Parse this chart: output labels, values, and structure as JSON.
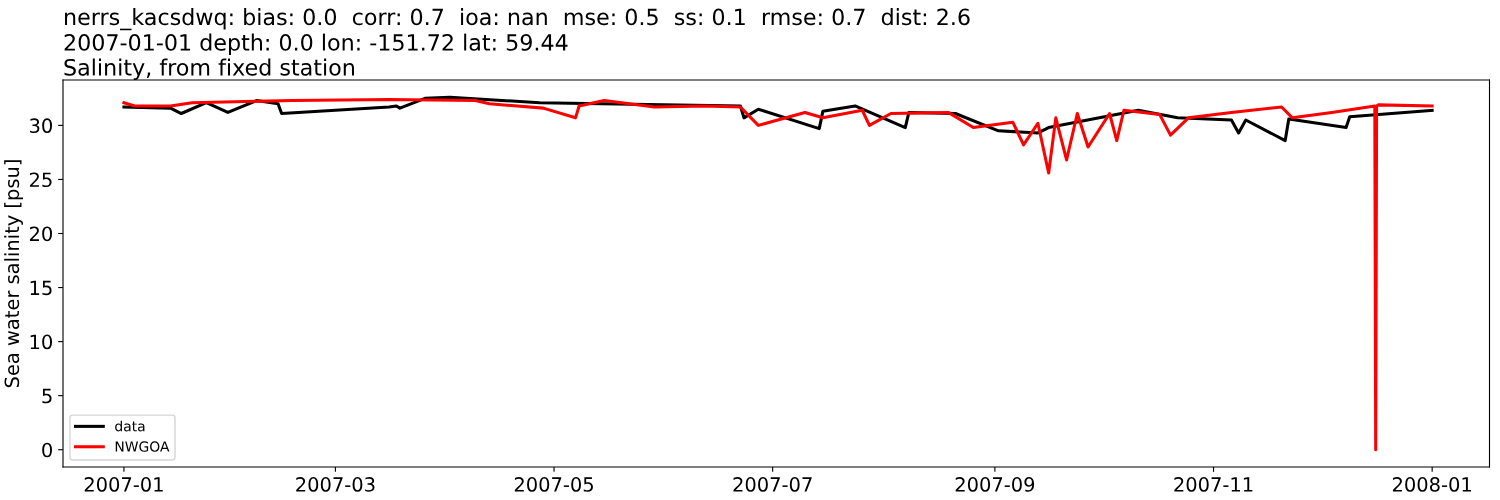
{
  "chart_data": {
    "type": "line",
    "title": "nerrs_kacsdwq: bias: 0.0  corr: 0.7  ioa: nan  mse: 0.5  ss: 0.1  rmse: 0.7  dist: 2.6\n2007-01-01 depth: 0.0 lon: -151.72 lat: 59.44\nSalinity, from fixed station",
    "ylabel": "Sea water salinity [psu]",
    "series": [
      {
        "name": "data",
        "color": "#000000",
        "x": [
          "2007-01-01",
          "2007-01-14",
          "2007-01-17",
          "2007-01-24",
          "2007-01-30",
          "2007-02-07",
          "2007-02-13",
          "2007-02-14",
          "2007-03-16",
          "2007-03-18",
          "2007-03-19",
          "2007-03-26",
          "2007-04-02",
          "2007-04-27",
          "2007-06-22",
          "2007-06-23",
          "2007-06-27",
          "2007-07-14",
          "2007-07-15",
          "2007-07-24",
          "2007-08-07",
          "2007-08-08",
          "2007-08-21",
          "2007-09-02",
          "2007-09-13",
          "2007-09-16",
          "2007-10-11",
          "2007-10-22",
          "2007-11-06",
          "2007-11-08",
          "2007-11-10",
          "2007-11-21",
          "2007-11-22",
          "2007-12-08",
          "2007-12-09",
          "2008-01-01"
        ],
        "values": [
          31.7,
          31.6,
          31.1,
          32.1,
          31.2,
          32.3,
          32.0,
          31.1,
          31.7,
          31.8,
          31.6,
          32.5,
          32.6,
          32.1,
          31.8,
          30.7,
          31.5,
          29.7,
          31.3,
          31.8,
          29.8,
          31.2,
          31.1,
          29.5,
          29.3,
          29.8,
          31.4,
          30.7,
          30.5,
          29.3,
          30.5,
          28.6,
          30.6,
          29.8,
          30.8,
          31.4
        ]
      },
      {
        "name": "NWGOA",
        "color": "#ff0000",
        "x": [
          "2007-01-01",
          "2007-01-04",
          "2007-01-14",
          "2007-01-20",
          "2007-02-17",
          "2007-03-16",
          "2007-04-09",
          "2007-04-13",
          "2007-04-28",
          "2007-05-07",
          "2007-05-08",
          "2007-05-15",
          "2007-05-29",
          "2007-06-12",
          "2007-06-22",
          "2007-06-27",
          "2007-07-10",
          "2007-07-15",
          "2007-07-26",
          "2007-07-28",
          "2007-08-03",
          "2007-08-19",
          "2007-08-26",
          "2007-09-06",
          "2007-09-09",
          "2007-09-13",
          "2007-09-16",
          "2007-09-18",
          "2007-09-21",
          "2007-09-24",
          "2007-09-27",
          "2007-10-03",
          "2007-10-05",
          "2007-10-07",
          "2007-10-17",
          "2007-10-20",
          "2007-10-25",
          "2007-11-06",
          "2007-11-20",
          "2007-11-23",
          "2007-12-04",
          "2007-12-16",
          "2007-12-16T06:00",
          "2007-12-16T12:00",
          "2007-12-17",
          "2008-01-01"
        ],
        "values": [
          32.1,
          31.8,
          31.8,
          32.1,
          32.3,
          32.4,
          32.3,
          32.0,
          31.6,
          30.7,
          31.8,
          32.3,
          31.7,
          31.8,
          31.7,
          30.0,
          31.2,
          30.7,
          31.4,
          30.0,
          31.1,
          31.2,
          29.8,
          30.3,
          28.2,
          30.2,
          25.6,
          30.7,
          26.8,
          31.1,
          28.0,
          31.1,
          28.6,
          31.4,
          31.0,
          29.1,
          30.7,
          31.2,
          31.7,
          30.7,
          31.2,
          31.8,
          0,
          31.8,
          31.9,
          31.8
        ]
      }
    ],
    "xlim": [
      "2006-12-15",
      "2008-01-17"
    ],
    "xticks": [
      {
        "value": "2007-01-01",
        "label": "2007-01"
      },
      {
        "value": "2007-03-01",
        "label": "2007-03"
      },
      {
        "value": "2007-05-01",
        "label": "2007-05"
      },
      {
        "value": "2007-07-01",
        "label": "2007-07"
      },
      {
        "value": "2007-09-01",
        "label": "2007-09"
      },
      {
        "value": "2007-11-01",
        "label": "2007-11"
      },
      {
        "value": "2008-01-01",
        "label": "2008-01"
      }
    ],
    "ylim": [
      -1.6,
      34.2
    ],
    "yticks": [
      0,
      5,
      10,
      15,
      20,
      25,
      30
    ],
    "legend": "bottom left",
    "grid": false,
    "line_style": "solid",
    "marker": "none"
  }
}
